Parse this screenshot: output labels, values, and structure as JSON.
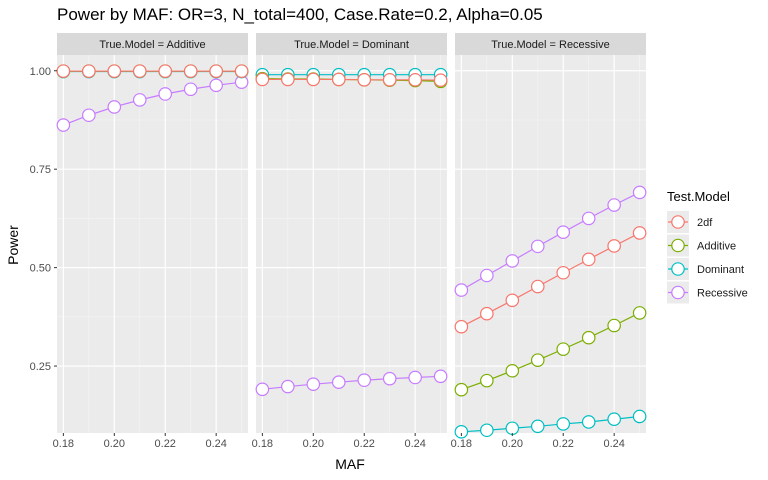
{
  "chart_data": {
    "type": "line",
    "title": "Power by MAF: OR=3, N_total=400, Case.Rate=0.2, Alpha=0.05",
    "xlabel": "MAF",
    "ylabel": "Power",
    "x": [
      0.18,
      0.19,
      0.2,
      0.21,
      0.22,
      0.23,
      0.24,
      0.25
    ],
    "xlim": [
      0.1775,
      0.2525
    ],
    "ylim": [
      0.08,
      1.04
    ],
    "x_ticks": [
      0.18,
      0.2,
      0.22,
      0.24
    ],
    "x_tick_labels": [
      "0.18",
      "0.20",
      "0.22",
      "0.24"
    ],
    "y_ticks": [
      0.25,
      0.5,
      0.75,
      1.0
    ],
    "y_tick_labels": [
      "0.25",
      "0.50",
      "0.75",
      "1.00"
    ],
    "grid": true,
    "legend": {
      "title": "Test.Model",
      "position": "right",
      "entries": [
        {
          "name": "2df",
          "color": "#F8766D"
        },
        {
          "name": "Additive",
          "color": "#7CAE00"
        },
        {
          "name": "Dominant",
          "color": "#00BFC4"
        },
        {
          "name": "Recessive",
          "color": "#C77CFF"
        }
      ]
    },
    "panels": [
      {
        "strip": "True.Model = Additive",
        "series": [
          {
            "name": "Recessive",
            "values": [
              0.862,
              0.887,
              0.908,
              0.926,
              0.941,
              0.953,
              0.963,
              0.971
            ]
          },
          {
            "name": "Dominant",
            "values": [
              0.998,
              0.998,
              0.998,
              0.998,
              0.998,
              0.998,
              0.998,
              0.998
            ]
          },
          {
            "name": "Additive",
            "values": [
              0.999,
              0.999,
              0.999,
              0.999,
              0.999,
              0.999,
              0.999,
              0.999
            ]
          },
          {
            "name": "2df",
            "values": [
              0.999,
              0.999,
              0.999,
              0.999,
              0.999,
              0.999,
              0.999,
              0.999
            ]
          }
        ]
      },
      {
        "strip": "True.Model = Dominant",
        "series": [
          {
            "name": "Recessive",
            "values": [
              0.191,
              0.198,
              0.204,
              0.209,
              0.214,
              0.218,
              0.221,
              0.224
            ]
          },
          {
            "name": "Dominant",
            "values": [
              0.99,
              0.99,
              0.99,
              0.99,
              0.99,
              0.99,
              0.99,
              0.99
            ]
          },
          {
            "name": "Additive",
            "values": [
              0.98,
              0.979,
              0.979,
              0.978,
              0.977,
              0.976,
              0.975,
              0.973
            ]
          },
          {
            "name": "2df",
            "values": [
              0.978,
              0.978,
              0.978,
              0.978,
              0.977,
              0.977,
              0.977,
              0.976
            ]
          }
        ]
      },
      {
        "strip": "True.Model = Recessive",
        "series": [
          {
            "name": "2df",
            "values": [
              0.35,
              0.383,
              0.417,
              0.452,
              0.487,
              0.521,
              0.555,
              0.588
            ]
          },
          {
            "name": "Additive",
            "values": [
              0.19,
              0.213,
              0.238,
              0.265,
              0.293,
              0.322,
              0.353,
              0.385
            ]
          },
          {
            "name": "Dominant",
            "values": [
              0.083,
              0.087,
              0.092,
              0.097,
              0.103,
              0.108,
              0.115,
              0.122
            ]
          },
          {
            "name": "Recessive",
            "values": [
              0.443,
              0.48,
              0.517,
              0.554,
              0.59,
              0.625,
              0.659,
              0.691
            ]
          }
        ]
      }
    ]
  }
}
